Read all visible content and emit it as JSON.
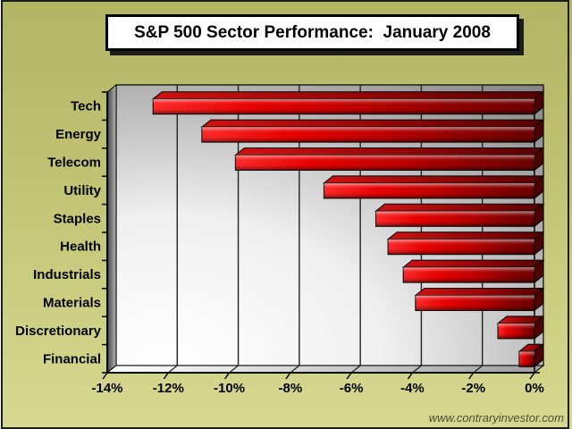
{
  "title_box": {
    "text": "S&P 500 Sector Performance:  January 2008"
  },
  "watermark": {
    "text": "www.contraryinvestor.com"
  },
  "colors": {
    "background_top": "#b2b563",
    "background_bottom": "#d7d991",
    "bar_bright": "#ff1a1a",
    "bar_dark": "#6e0000",
    "bar_side": "#4a0404",
    "wall_dark": "#858585",
    "wall_light": "#ffffff",
    "gridline": "#222222",
    "title_background": "#ffffff",
    "frame": "#1d1d1d",
    "watermark_text": "#4b4d35"
  },
  "chart_data": {
    "type": "bar",
    "orientation": "horizontal",
    "style_3d": true,
    "title": "S&P 500 Sector Performance:  January 2008",
    "unit": "%",
    "categories": [
      "Tech",
      "Energy",
      "Telecom",
      "Utility",
      "Staples",
      "Health",
      "Industrials",
      "Materials",
      "Discretionary",
      "Financial"
    ],
    "values": [
      -12.5,
      -10.9,
      -9.8,
      -6.9,
      -5.2,
      -4.8,
      -4.3,
      -3.9,
      -1.2,
      -0.5
    ],
    "xlabel": "",
    "ylabel": "",
    "xlim": [
      -14,
      0
    ],
    "x_tick_values": [
      -14,
      -12,
      -10,
      -8,
      -6,
      -4,
      -2,
      0
    ],
    "x_tick_labels": [
      "-14%",
      "-12%",
      "-10%",
      "-8%",
      "-6%",
      "-4%",
      "-2%",
      "0%"
    ],
    "grid": true,
    "legend": false,
    "watermark": "www.contraryinvestor.com"
  }
}
